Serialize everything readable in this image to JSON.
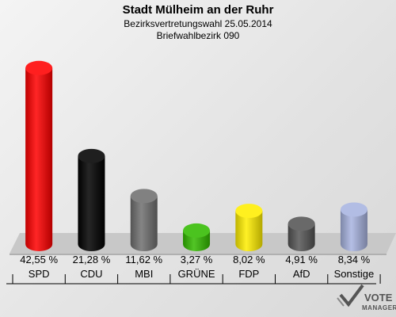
{
  "header": {
    "title": "Stadt Mülheim an der Ruhr",
    "subtitle1": "Bezirksvertretungswahl 25.05.2014",
    "subtitle2": "Briefwahlbezirk 090"
  },
  "logo": {
    "line1": "VOTE",
    "line2": "MANAGER"
  },
  "chart_data": {
    "type": "bar",
    "title": "Stadt Mülheim an der Ruhr",
    "subtitle": "Bezirksvertretungswahl 25.05.2014 / Briefwahlbezirk 090",
    "categories": [
      "SPD",
      "CDU",
      "MBI",
      "GRÜNE",
      "FDP",
      "AfD",
      "Sonstige"
    ],
    "values": [
      42.55,
      21.28,
      11.62,
      3.27,
      8.02,
      4.91,
      8.34
    ],
    "value_labels": [
      "42,55 %",
      "21,28 %",
      "11,62 %",
      "3,27 %",
      "8,02 %",
      "4,91 %",
      "8,34 %"
    ],
    "colors": [
      "#ff0000",
      "#000000",
      "#707070",
      "#33bb00",
      "#ffee00",
      "#555555",
      "#a8b4e0"
    ],
    "xlabel": "",
    "ylabel": "",
    "ylim": [
      0,
      45
    ]
  }
}
